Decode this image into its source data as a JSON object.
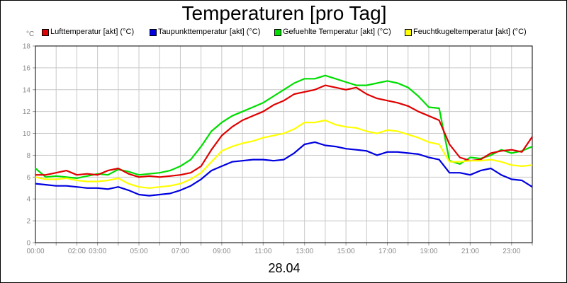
{
  "chart_data": {
    "type": "line",
    "title": "Temperaturen [pro Tag]",
    "unit_label": "°C",
    "date_label": "28.04",
    "ylim": [
      0,
      18
    ],
    "xlim": [
      0,
      24
    ],
    "y_ticks": [
      0,
      2,
      4,
      6,
      8,
      10,
      12,
      14,
      16,
      18
    ],
    "x_ticks": [
      {
        "t": 0,
        "label": "00:00"
      },
      {
        "t": 2,
        "label": "02:00"
      },
      {
        "t": 3,
        "label": "03:00"
      },
      {
        "t": 5,
        "label": "05:00"
      },
      {
        "t": 7,
        "label": "07:00"
      },
      {
        "t": 9,
        "label": "09:00"
      },
      {
        "t": 11,
        "label": "11:00"
      },
      {
        "t": 13,
        "label": "13:00"
      },
      {
        "t": 15,
        "label": "15:00"
      },
      {
        "t": 17,
        "label": "17:00"
      },
      {
        "t": 19,
        "label": "19:00"
      },
      {
        "t": 21,
        "label": "21:00"
      },
      {
        "t": 23,
        "label": "23:00"
      }
    ],
    "grid": true,
    "legend_position": "top",
    "series": [
      {
        "name": "Lufttemperatur [akt] (°C)",
        "color": "#e00000",
        "x": [
          0,
          0.5,
          1,
          1.5,
          2,
          2.5,
          3,
          3.5,
          4,
          4.5,
          5,
          5.5,
          6,
          6.5,
          7,
          7.5,
          8,
          8.5,
          9,
          9.5,
          10,
          10.5,
          11,
          11.5,
          12,
          12.5,
          13,
          13.5,
          14,
          14.5,
          15,
          15.5,
          16,
          16.5,
          17,
          17.5,
          18,
          18.5,
          19,
          19.5,
          20,
          20.5,
          21,
          21.5,
          22,
          22.5,
          23,
          23.5,
          24
        ],
        "y": [
          6.2,
          6.2,
          6.4,
          6.6,
          6.2,
          6.3,
          6.2,
          6.6,
          6.8,
          6.3,
          6.0,
          6.1,
          6.0,
          6.1,
          6.2,
          6.4,
          7.0,
          8.5,
          9.8,
          10.6,
          11.2,
          11.6,
          12.0,
          12.6,
          13.0,
          13.6,
          13.8,
          14.0,
          14.4,
          14.2,
          14.0,
          14.2,
          13.6,
          13.2,
          13.0,
          12.8,
          12.5,
          12.0,
          11.6,
          11.2,
          9.0,
          7.8,
          7.5,
          7.6,
          8.2,
          8.4,
          8.5,
          8.3,
          9.7
        ]
      },
      {
        "name": "Taupunkttemperatur [akt] (°C)",
        "color": "#0000e0",
        "x": [
          0,
          0.5,
          1,
          1.5,
          2,
          2.5,
          3,
          3.5,
          4,
          4.5,
          5,
          5.5,
          6,
          6.5,
          7,
          7.5,
          8,
          8.5,
          9,
          9.5,
          10,
          10.5,
          11,
          11.5,
          12,
          12.5,
          13,
          13.5,
          14,
          14.5,
          15,
          15.5,
          16,
          16.5,
          17,
          17.5,
          18,
          18.5,
          19,
          19.5,
          20,
          20.5,
          21,
          21.5,
          22,
          22.5,
          23,
          23.5,
          24
        ],
        "y": [
          5.4,
          5.3,
          5.2,
          5.2,
          5.1,
          5.0,
          5.0,
          4.9,
          5.1,
          4.8,
          4.4,
          4.3,
          4.4,
          4.5,
          4.8,
          5.2,
          5.8,
          6.6,
          7.0,
          7.4,
          7.5,
          7.6,
          7.6,
          7.5,
          7.6,
          8.2,
          9.0,
          9.2,
          8.9,
          8.8,
          8.6,
          8.5,
          8.4,
          8.0,
          8.3,
          8.3,
          8.2,
          8.1,
          7.8,
          7.6,
          6.4,
          6.4,
          6.2,
          6.6,
          6.8,
          6.2,
          5.8,
          5.7,
          5.1
        ]
      },
      {
        "name": "Gefuehlte Temperatur [akt] (°C)",
        "color": "#00dd00",
        "x": [
          0,
          0.5,
          1,
          1.5,
          2,
          2.5,
          3,
          3.5,
          4,
          4.5,
          5,
          5.5,
          6,
          6.5,
          7,
          7.5,
          8,
          8.5,
          9,
          9.5,
          10,
          10.5,
          11,
          11.5,
          12,
          12.5,
          13,
          13.5,
          14,
          14.5,
          15,
          15.5,
          16,
          16.5,
          17,
          17.5,
          18,
          18.5,
          19,
          19.5,
          20,
          20.5,
          21,
          21.5,
          22,
          22.5,
          23,
          23.5,
          24
        ],
        "y": [
          6.8,
          6.0,
          6.1,
          6.0,
          5.9,
          6.1,
          6.3,
          6.2,
          6.7,
          6.5,
          6.2,
          6.3,
          6.4,
          6.6,
          7.0,
          7.6,
          8.8,
          10.2,
          11.0,
          11.6,
          12.0,
          12.4,
          12.8,
          13.4,
          14.0,
          14.6,
          15.0,
          15.0,
          15.3,
          15.0,
          14.7,
          14.4,
          14.4,
          14.6,
          14.8,
          14.6,
          14.2,
          13.4,
          12.4,
          12.3,
          7.5,
          7.2,
          7.8,
          7.7,
          8.0,
          8.5,
          8.2,
          8.4,
          8.8
        ]
      },
      {
        "name": "Feuchtkugeltemperatur [akt] (°C)",
        "color": "#ffff00",
        "x": [
          0,
          0.5,
          1,
          1.5,
          2,
          2.5,
          3,
          3.5,
          4,
          4.5,
          5,
          5.5,
          6,
          6.5,
          7,
          7.5,
          8,
          8.5,
          9,
          9.5,
          10,
          10.5,
          11,
          11.5,
          12,
          12.5,
          13,
          13.5,
          14,
          14.5,
          15,
          15.5,
          16,
          16.5,
          17,
          17.5,
          18,
          18.5,
          19,
          19.5,
          20,
          20.5,
          21,
          21.5,
          22,
          22.5,
          23,
          23.5,
          24
        ],
        "y": [
          6.0,
          5.8,
          5.8,
          5.9,
          5.7,
          5.6,
          5.6,
          5.7,
          5.9,
          5.4,
          5.1,
          5.0,
          5.1,
          5.2,
          5.4,
          5.8,
          6.4,
          7.4,
          8.4,
          8.8,
          9.1,
          9.3,
          9.6,
          9.8,
          10.0,
          10.4,
          11.0,
          11.0,
          11.2,
          10.8,
          10.6,
          10.5,
          10.2,
          10.0,
          10.3,
          10.2,
          9.9,
          9.6,
          9.2,
          9.0,
          7.4,
          7.4,
          7.5,
          7.5,
          7.6,
          7.4,
          7.1,
          7.0,
          7.1
        ]
      }
    ]
  }
}
